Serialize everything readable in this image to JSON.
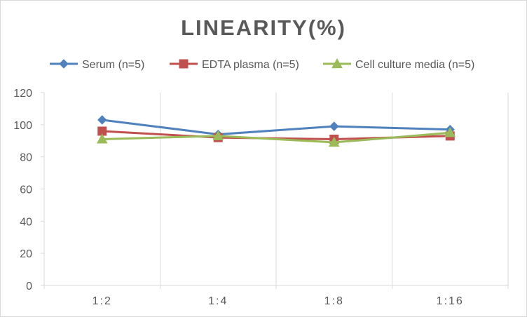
{
  "chart_data": {
    "type": "line",
    "title": "LINEARITY(%)",
    "xlabel": "",
    "ylabel": "",
    "categories": [
      "1:2",
      "1:4",
      "1:8",
      "1:16"
    ],
    "y_ticks": [
      "0",
      "20",
      "40",
      "60",
      "80",
      "100",
      "120"
    ],
    "ylim": [
      0,
      120
    ],
    "grid": "vertical",
    "legend_position": "top",
    "series": [
      {
        "name": "Serum (n=5)",
        "color": "#4f81bd",
        "marker": "diamond",
        "values": [
          103,
          94,
          99,
          97
        ]
      },
      {
        "name": "EDTA plasma (n=5)",
        "color": "#c0504d",
        "marker": "square",
        "values": [
          96,
          92,
          91,
          93
        ]
      },
      {
        "name": "Cell culture media (n=5)",
        "color": "#9bbb59",
        "marker": "triangle",
        "values": [
          91,
          93,
          89,
          95
        ]
      }
    ]
  }
}
